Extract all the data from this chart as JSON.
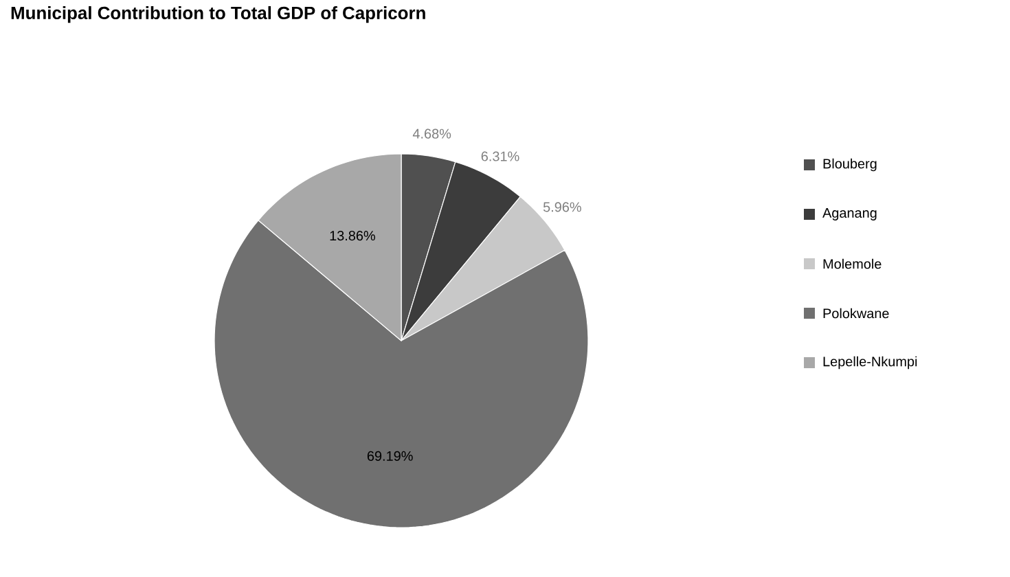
{
  "chart_data": {
    "type": "pie",
    "title": "Municipal Contribution to Total GDP of Capricorn",
    "categories": [
      "Blouberg",
      "Aganang",
      "Molemole",
      "Polokwane",
      "Lepelle-Nkumpi"
    ],
    "values": [
      4.68,
      6.31,
      5.96,
      69.19,
      13.86
    ],
    "value_labels": [
      "4.68%",
      "6.31%",
      "5.96%",
      "69.19%",
      "13.86%"
    ],
    "colors": [
      "#505050",
      "#3c3c3c",
      "#c8c8c8",
      "#707070",
      "#a8a8a8"
    ],
    "legend": "right"
  }
}
